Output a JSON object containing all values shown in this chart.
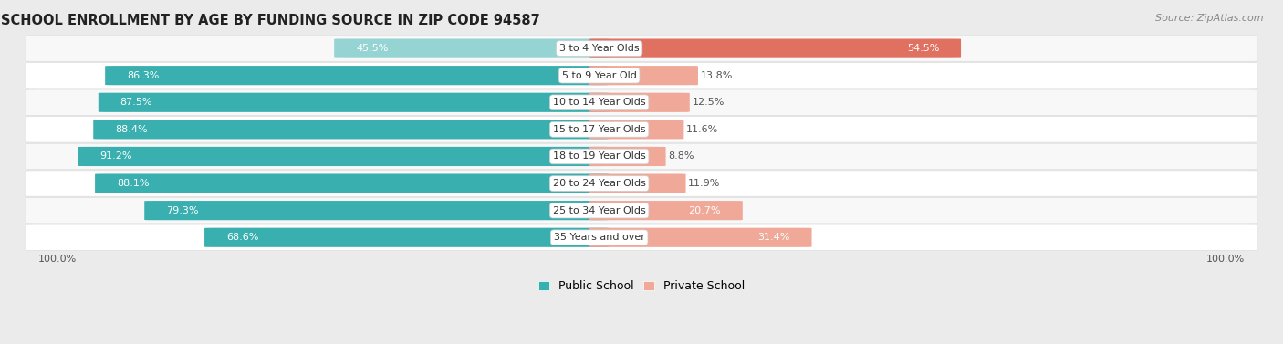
{
  "title": "SCHOOL ENROLLMENT BY AGE BY FUNDING SOURCE IN ZIP CODE 94587",
  "source": "Source: ZipAtlas.com",
  "categories": [
    "3 to 4 Year Olds",
    "5 to 9 Year Old",
    "10 to 14 Year Olds",
    "15 to 17 Year Olds",
    "18 to 19 Year Olds",
    "20 to 24 Year Olds",
    "25 to 34 Year Olds",
    "35 Years and over"
  ],
  "public_pct": [
    45.5,
    86.3,
    87.5,
    88.4,
    91.2,
    88.1,
    79.3,
    68.6
  ],
  "private_pct": [
    54.5,
    13.8,
    12.5,
    11.6,
    8.8,
    11.9,
    20.7,
    31.4
  ],
  "public_color_light": "#96D4D4",
  "public_color_dark": "#3AAFAF",
  "private_color_light": "#F0A898",
  "private_color_dark": "#E07060",
  "row_colors": [
    "#F5F5F5",
    "#FFFFFF",
    "#F5F5F5",
    "#FFFFFF",
    "#F5F5F5",
    "#FFFFFF",
    "#F5F5F5",
    "#FFFFFF"
  ],
  "bg_color": "#EBEBEB",
  "title_fontsize": 10.5,
  "bar_label_fontsize": 8,
  "cat_label_fontsize": 8,
  "legend_fontsize": 9,
  "source_fontsize": 8
}
